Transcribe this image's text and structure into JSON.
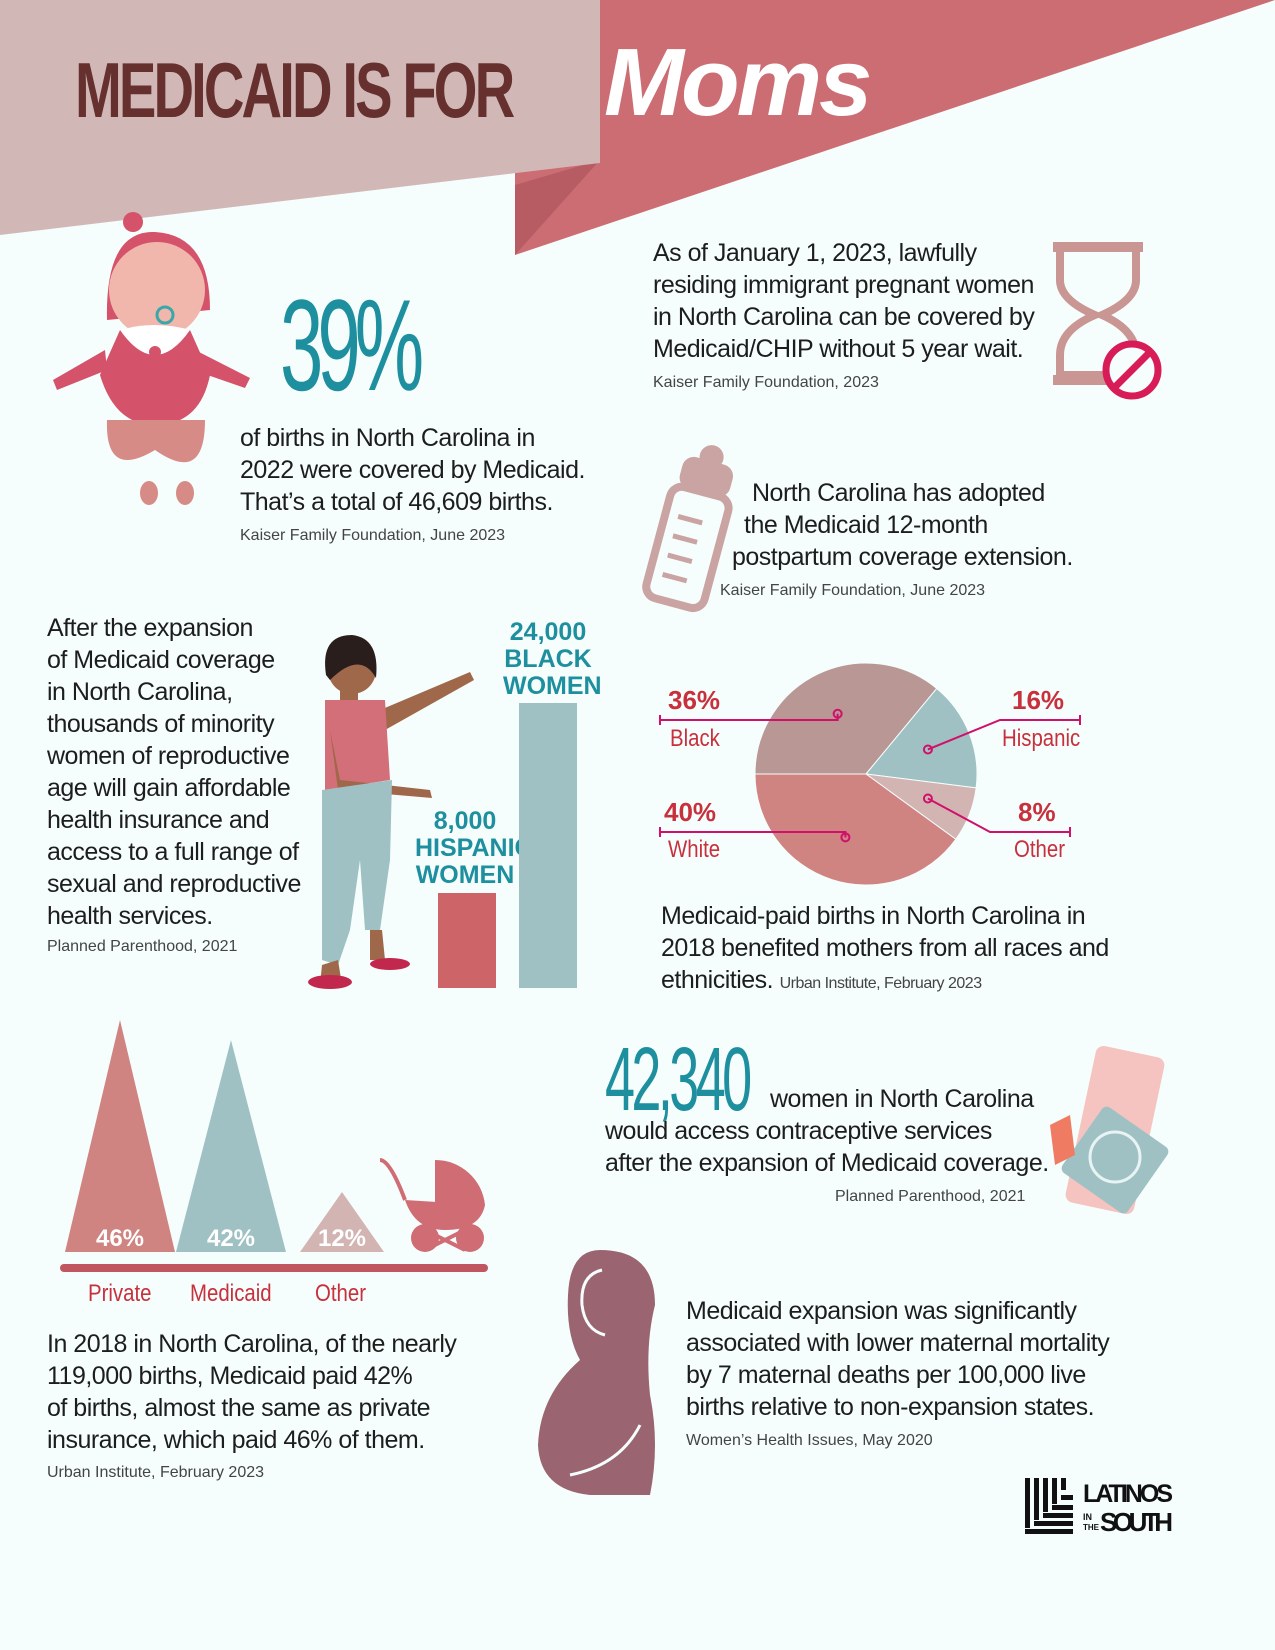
{
  "header": {
    "title_main": "MEDICAID IS FOR",
    "title_accent": "Moms"
  },
  "stat_births": {
    "value": "39%",
    "text": [
      "of births in North Carolina in",
      "2022 were covered by Medicaid.",
      "That’s a total of 46,609 births."
    ],
    "source": "Kaiser Family Foundation, June 2023"
  },
  "immigrant": {
    "text": [
      "As of January 1, 2023, lawfully",
      "residing immigrant pregnant women",
      "in North Carolina can be covered by",
      "Medicaid/CHIP without 5 year wait."
    ],
    "source": "Kaiser Family  Foundation, 2023"
  },
  "postpartum": {
    "text": [
      "North Carolina has adopted",
      "the Medicaid 12-month",
      "postpartum coverage extension."
    ],
    "source": "Kaiser Family Foundation, June 2023"
  },
  "expansion": {
    "text": [
      "After the expansion",
      "of Medicaid coverage",
      "in North Carolina,",
      "thousands of minority",
      "women of reproductive",
      "age will gain affordable",
      "health insurance and",
      "access to a full range of",
      "sexual and reproductive",
      "health services."
    ],
    "source": "Planned Parenthood, 2021"
  },
  "race_text": {
    "text": [
      "Medicaid-paid births in North Carolina in",
      "2018 benefited mothers from all races and",
      "ethnicities."
    ],
    "source": "Urban Institute, February 2023"
  },
  "contraceptive": {
    "value": "42,340",
    "text": [
      "women in North Carolina",
      "would access contraceptive services",
      "after the expansion of Medicaid coverage."
    ],
    "source": "Planned Parenthood, 2021"
  },
  "payer_text": {
    "text": [
      "In 2018 in North Carolina, of the nearly",
      "119,000 births, Medicaid paid 42%",
      "of births, almost the same as private",
      "insurance, which paid 46% of them."
    ],
    "source": "Urban Institute, February 2023"
  },
  "mortality": {
    "text": [
      "Medicaid expansion was significantly",
      "associated with lower maternal mortality",
      "by 7 maternal deaths per 100,000 live",
      "births relative to non-expansion states."
    ],
    "source": "Women’s Health Issues, May 2020"
  },
  "logo": {
    "text": "LATINOS IN THE SOUTH"
  },
  "colors": {
    "header_light": "#d1b8b7",
    "header_dark": "#cc6d73",
    "teal": "#1e8f9e",
    "red_label": "#c8303c",
    "magenta": "#d0106a"
  },
  "chart_data": [
    {
      "type": "bar",
      "categories": [
        "HISPANIC WOMEN",
        "BLACK WOMEN"
      ],
      "values": [
        8000,
        24000
      ],
      "value_labels": [
        "8,000",
        "24,000"
      ],
      "colors": [
        "#cd6468",
        "#a0c1c3"
      ]
    },
    {
      "type": "pie",
      "slices": [
        {
          "label": "Black",
          "value": 36,
          "text": "36%",
          "color": "#b89794"
        },
        {
          "label": "Hispanic",
          "value": 16,
          "text": "16%",
          "color": "#a0c1c3"
        },
        {
          "label": "Other",
          "value": 8,
          "text": "8%",
          "color": "#d2b5b3"
        },
        {
          "label": "White",
          "value": 40,
          "text": "40%",
          "color": "#cf8481"
        }
      ]
    },
    {
      "type": "bar",
      "categories": [
        "Private",
        "Medicaid",
        "Other"
      ],
      "values": [
        46,
        42,
        12
      ],
      "value_labels": [
        "46%",
        "42%",
        "12%"
      ],
      "colors": [
        "#cf8481",
        "#a0c1c3",
        "#d2b5b3"
      ]
    }
  ]
}
